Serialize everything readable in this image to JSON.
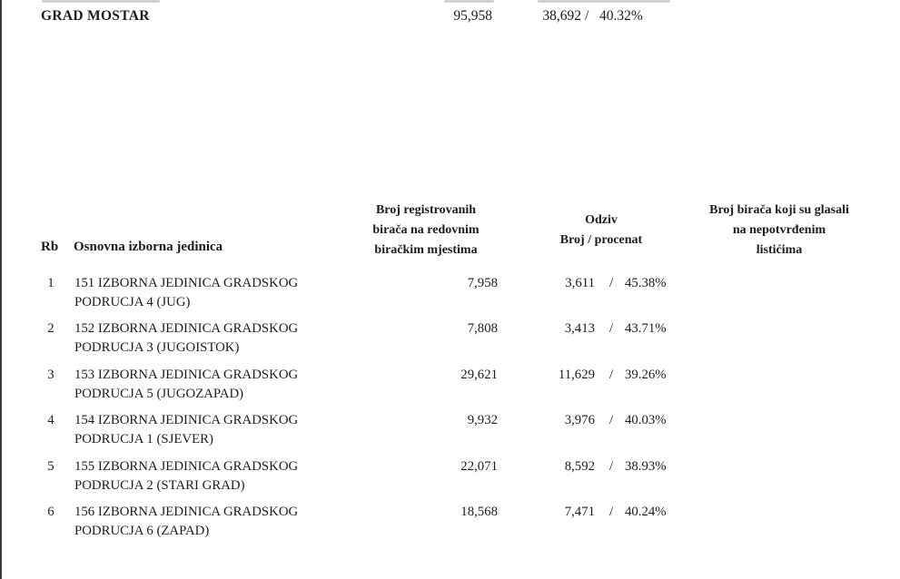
{
  "document": {
    "summary": {
      "title": "GRAD MOSTAR",
      "registered": "95,958",
      "turnout": "38,692",
      "separator": "/",
      "percent": "40.32%"
    },
    "table": {
      "headers": {
        "rb": "Rb",
        "unit": "Osnovna izborna jedinica",
        "registered_lines": [
          "Broj registrovanih",
          "birača na redovnim",
          "biračkim mjestima"
        ],
        "turnout_lines": [
          "Odziv",
          "Broj / procenat"
        ],
        "unconfirmed_lines": [
          "Broj birača koji su glasali",
          "na nepotvrđenim",
          "listićima"
        ]
      },
      "rows": [
        {
          "rb": "1",
          "name_line1": "151 IZBORNA JEDINICA GRADSKOG",
          "name_line2": "PODRUCJA 4 (JUG)",
          "registered": "7,958",
          "turnout": "3,611",
          "separator": "/",
          "percent": "45.38%"
        },
        {
          "rb": "2",
          "name_line1": "152 IZBORNA JEDINICA GRADSKOG",
          "name_line2": "PODRUCJA 3 (JUGOISTOK)",
          "registered": "7,808",
          "turnout": "3,413",
          "separator": "/",
          "percent": "43.71%"
        },
        {
          "rb": "3",
          "name_line1": "153 IZBORNA JEDINICA GRADSKOG",
          "name_line2": "PODRUCJA 5 (JUGOZAPAD)",
          "registered": "29,621",
          "turnout": "11,629",
          "separator": "/",
          "percent": "39.26%"
        },
        {
          "rb": "4",
          "name_line1": "154 IZBORNA JEDINICA GRADSKOG",
          "name_line2": "PODRUCJA 1 (SJEVER)",
          "registered": "9,932",
          "turnout": "3,976",
          "separator": "/",
          "percent": "40.03%"
        },
        {
          "rb": "5",
          "name_line1": "155 IZBORNA JEDINICA GRADSKOG",
          "name_line2": "PODRUCJA 2 (STARI GRAD)",
          "registered": "22,071",
          "turnout": "8,592",
          "separator": "/",
          "percent": "38.93%"
        },
        {
          "rb": "6",
          "name_line1": "156 IZBORNA JEDINICA GRADSKOG",
          "name_line2": "PODRUCJA 6 (ZAPAD)",
          "registered": "18,568",
          "turnout": "7,471",
          "separator": "/",
          "percent": "40.24%"
        }
      ]
    }
  }
}
